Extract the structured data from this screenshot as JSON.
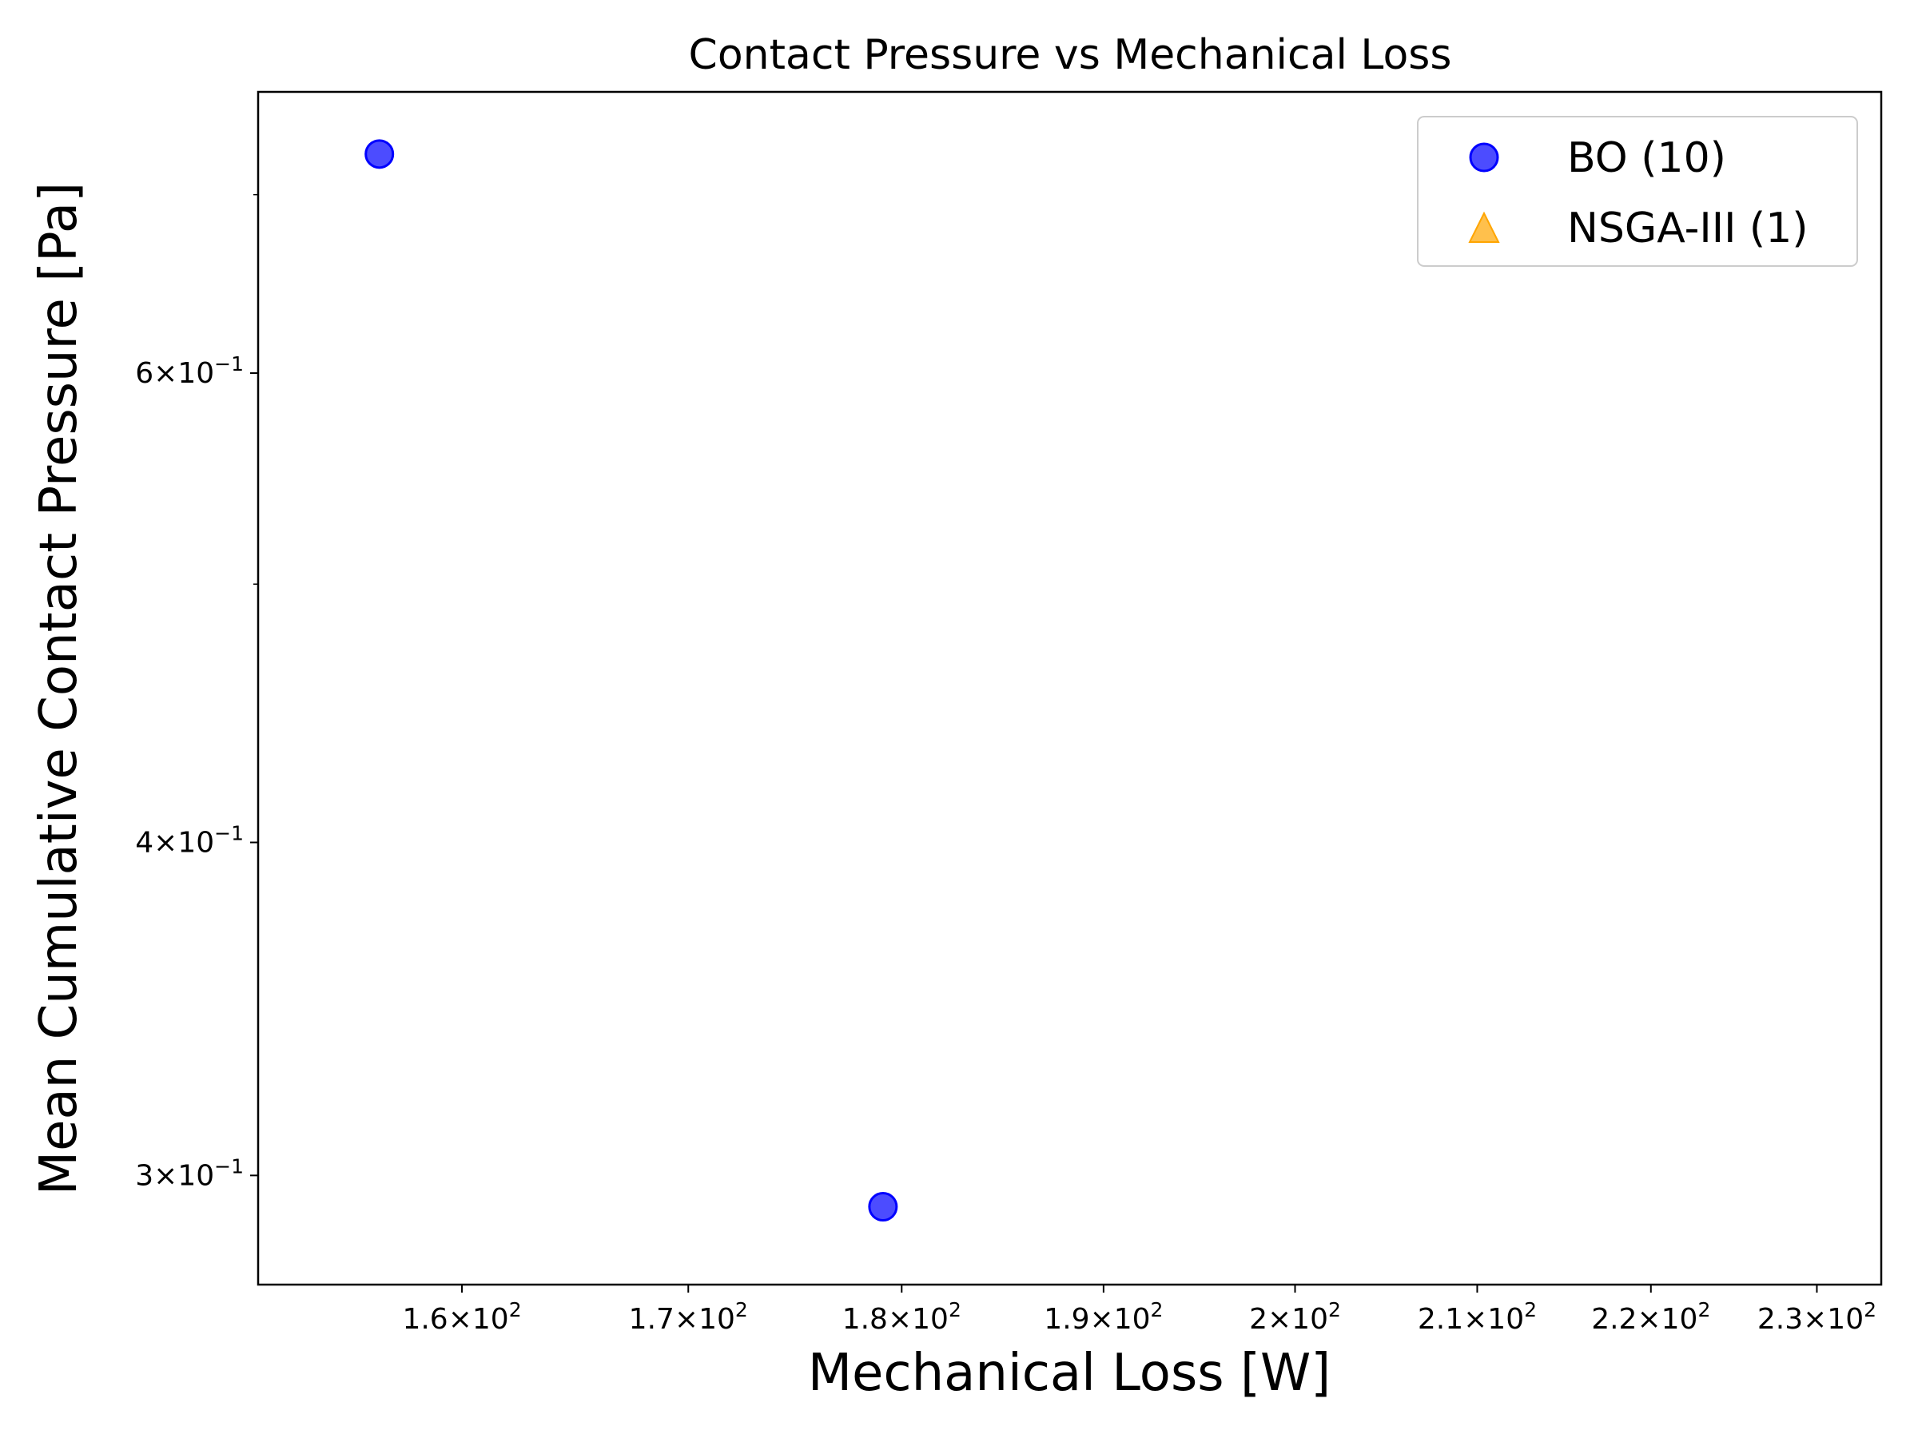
{
  "chart_data": {
    "type": "scatter",
    "title": "Contact Pressure vs Mechanical Loss",
    "xlabel": "Mechanical Loss [W]",
    "ylabel": "Mean Cumulative Contact Pressure [Pa]",
    "xscale": "log",
    "yscale": "log",
    "xlim": [
      151.5,
      234
    ],
    "ylim": [
      0.273,
      0.765
    ],
    "x_ticks": [
      {
        "value": 160,
        "mantissa": "1.6",
        "base": "10",
        "exp": "2"
      },
      {
        "value": 170,
        "mantissa": "1.7",
        "base": "10",
        "exp": "2"
      },
      {
        "value": 180,
        "mantissa": "1.8",
        "base": "10",
        "exp": "2"
      },
      {
        "value": 190,
        "mantissa": "1.9",
        "base": "10",
        "exp": "2"
      },
      {
        "value": 200,
        "mantissa": "2",
        "base": "10",
        "exp": "2"
      },
      {
        "value": 210,
        "mantissa": "2.1",
        "base": "10",
        "exp": "2"
      },
      {
        "value": 220,
        "mantissa": "2.2",
        "base": "10",
        "exp": "2"
      },
      {
        "value": 230,
        "mantissa": "2.3",
        "base": "10",
        "exp": "2"
      }
    ],
    "y_ticks": [
      {
        "value": 0.3,
        "mantissa": "3",
        "base": "10",
        "exp": "−1"
      },
      {
        "value": 0.4,
        "mantissa": "4",
        "base": "10",
        "exp": "−1"
      },
      {
        "value": 0.6,
        "mantissa": "6",
        "base": "10",
        "exp": "−1"
      }
    ],
    "y_minor_ticks": [
      0.5,
      0.7
    ],
    "grid": false,
    "legend_position": "top-right",
    "series": [
      {
        "name": "BO (10)",
        "marker": "circle",
        "color": "#0000ff",
        "points": [
          {
            "x": 156.5,
            "y": 0.725
          },
          {
            "x": 179.1,
            "y": 0.292
          }
        ]
      },
      {
        "name": "NSGA-III (1)",
        "marker": "triangle",
        "color": "#ffa500",
        "points": []
      }
    ]
  }
}
